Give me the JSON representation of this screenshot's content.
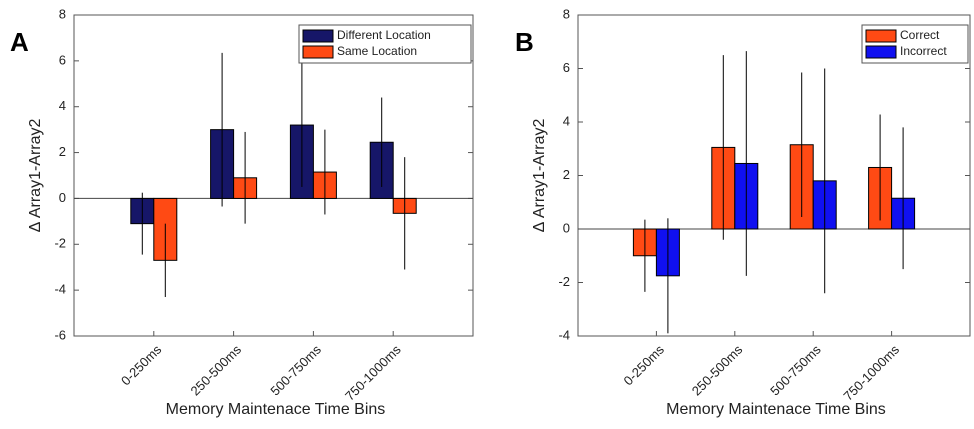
{
  "chart_data": [
    {
      "type": "bar",
      "panel_label": "A",
      "ylabel": "Δ Array1-Array2",
      "xlabel": "Memory Maintenace Time Bins",
      "categories": [
        "0-250ms",
        "250-500ms",
        "500-750ms",
        "750-1000ms"
      ],
      "series": [
        {
          "name": "Different Location",
          "color": "#161668",
          "values": [
            -1.1,
            3.0,
            3.2,
            2.45
          ],
          "errors": [
            1.35,
            3.35,
            2.7,
            1.95
          ]
        },
        {
          "name": "Same Location",
          "color": "#ff4a14",
          "values": [
            -2.7,
            0.9,
            1.15,
            -0.65
          ],
          "errors": [
            1.6,
            2.0,
            1.85,
            2.45
          ]
        }
      ],
      "ylim": [
        -6,
        8
      ],
      "yticks": [
        -6,
        -4,
        -2,
        0,
        2,
        4,
        6,
        8
      ],
      "legend": "upper right"
    },
    {
      "type": "bar",
      "panel_label": "B",
      "ylabel": "Δ Array1-Array2",
      "xlabel": "Memory Maintenace Time Bins",
      "categories": [
        "0-250ms",
        "250-500ms",
        "500-750ms",
        "750-1000ms"
      ],
      "series": [
        {
          "name": "Correct",
          "color": "#ff4a14",
          "values": [
            -1.0,
            3.05,
            3.15,
            2.3
          ],
          "errors": [
            1.35,
            3.45,
            2.7,
            1.98
          ]
        },
        {
          "name": "Incorrect",
          "color": "#1010f0",
          "values": [
            -1.75,
            2.45,
            1.8,
            1.15
          ],
          "errors": [
            2.15,
            4.2,
            4.2,
            2.65
          ]
        }
      ],
      "ylim": [
        -4,
        8
      ],
      "yticks": [
        -4,
        -2,
        0,
        2,
        4,
        6,
        8
      ],
      "legend": "upper right"
    }
  ]
}
